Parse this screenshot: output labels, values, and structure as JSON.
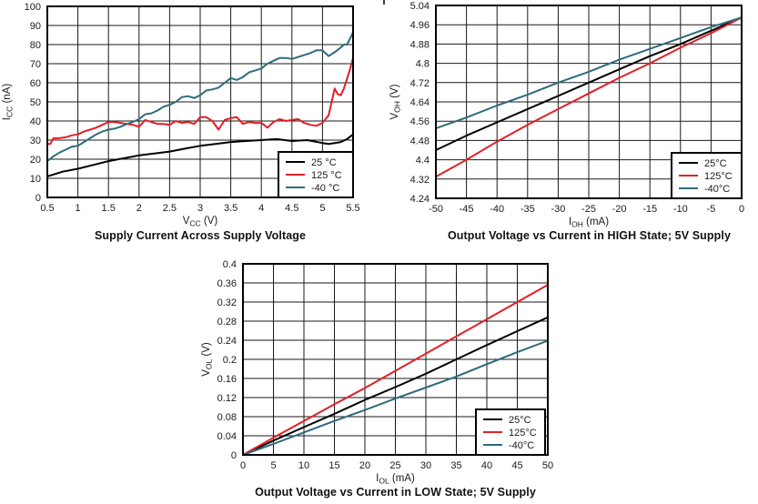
{
  "page": {
    "background": "#ffffff"
  },
  "colors": {
    "grid": "#1a1a1a",
    "frame": "#000000",
    "text": "#1a1a1a",
    "legend_border": "#000000",
    "legend_bg": "#ffffff"
  },
  "chart_data": [
    {
      "type": "line",
      "title": "Supply Current Across Supply Voltage",
      "xlabel": "VCC (V)",
      "ylabel": "ICC (nA)",
      "xlabel_parts": [
        {
          "t": "V"
        },
        {
          "t": "CC",
          "sub": true
        },
        {
          "t": " (V)"
        }
      ],
      "ylabel_parts": [
        {
          "t": "I"
        },
        {
          "t": "CC",
          "sub": true
        },
        {
          "t": " (nA)"
        }
      ],
      "xlim": [
        0.5,
        5.5
      ],
      "ylim": [
        0,
        100
      ],
      "xtick_labels": [
        "0.5",
        "1",
        "1.5",
        "2",
        "2.5",
        "3",
        "3.5",
        "4",
        "4.5",
        "5",
        "5.5"
      ],
      "ytick_labels": [
        "0",
        "10",
        "20",
        "30",
        "40",
        "50",
        "60",
        "70",
        "80",
        "90",
        "100"
      ],
      "grid": true,
      "legend_position": "bottom-right",
      "series": [
        {
          "name": "25 °C",
          "color": "#000000",
          "x": [
            0.5,
            0.75,
            1,
            1.25,
            1.5,
            1.75,
            2,
            2.25,
            2.5,
            2.75,
            3,
            3.25,
            3.5,
            3.75,
            4,
            4.25,
            4.5,
            4.75,
            5,
            5.1,
            5.2,
            5.3,
            5.4,
            5.5
          ],
          "y": [
            11,
            13.5,
            15,
            17,
            19,
            20.5,
            22,
            23,
            24,
            25.5,
            27,
            28,
            29,
            29.5,
            30,
            30.5,
            29.5,
            30,
            28.5,
            28,
            28.5,
            29,
            30.5,
            33
          ]
        },
        {
          "name": "125 °C",
          "color": "#e21f26",
          "x": [
            0.5,
            0.55,
            0.6,
            0.7,
            0.8,
            0.9,
            1,
            1.1,
            1.2,
            1.3,
            1.4,
            1.5,
            1.6,
            1.7,
            1.8,
            1.9,
            2,
            2.1,
            2.2,
            2.3,
            2.4,
            2.5,
            2.6,
            2.7,
            2.8,
            2.9,
            3,
            3.1,
            3.2,
            3.3,
            3.4,
            3.5,
            3.6,
            3.7,
            3.8,
            3.9,
            4,
            4.1,
            4.2,
            4.3,
            4.4,
            4.5,
            4.6,
            4.7,
            4.8,
            4.9,
            5,
            5.05,
            5.1,
            5.15,
            5.2,
            5.25,
            5.3,
            5.35,
            5.4,
            5.45,
            5.5
          ],
          "y": [
            28,
            28,
            31,
            31,
            31.5,
            32.5,
            33,
            34.5,
            35.5,
            36.5,
            38,
            39.5,
            39.5,
            39,
            38.5,
            38,
            37,
            40.5,
            39.5,
            38.5,
            38.5,
            38,
            40,
            39,
            39.5,
            38.5,
            42,
            42,
            40,
            35.5,
            40.5,
            41.5,
            42,
            38.5,
            39.5,
            39,
            39,
            36.5,
            39.5,
            41,
            40,
            40.5,
            41,
            39,
            38,
            37.5,
            39,
            41,
            43,
            50,
            57,
            54,
            53.5,
            57,
            62,
            67,
            73
          ]
        },
        {
          "name": "-40 °C",
          "color": "#2e6b7b",
          "x": [
            0.5,
            0.6,
            0.7,
            0.8,
            0.9,
            1,
            1.1,
            1.2,
            1.3,
            1.4,
            1.5,
            1.6,
            1.7,
            1.8,
            1.9,
            2,
            2.1,
            2.2,
            2.3,
            2.4,
            2.5,
            2.6,
            2.7,
            2.8,
            2.9,
            3,
            3.1,
            3.2,
            3.3,
            3.4,
            3.5,
            3.6,
            3.7,
            3.8,
            3.9,
            4,
            4.1,
            4.2,
            4.3,
            4.4,
            4.5,
            4.6,
            4.7,
            4.8,
            4.9,
            5,
            5.1,
            5.2,
            5.3,
            5.35,
            5.4,
            5.45,
            5.5
          ],
          "y": [
            19,
            21.5,
            23.5,
            25,
            26.5,
            27,
            29,
            31,
            33,
            34.5,
            35.5,
            36,
            37,
            38.5,
            39.5,
            41,
            43.5,
            44,
            45.5,
            47.5,
            48.5,
            50,
            52.5,
            53,
            52,
            53.5,
            56,
            56.5,
            57.5,
            60,
            62.5,
            61.5,
            63,
            65.5,
            66.5,
            67.5,
            70,
            71.5,
            73,
            73,
            72.5,
            73.5,
            74.5,
            75.5,
            77,
            77,
            74,
            76,
            78.5,
            80,
            80,
            83,
            86.5
          ]
        }
      ]
    },
    {
      "type": "line",
      "title": "Output Voltage vs Current in HIGH State; 5V Supply",
      "xlabel": "IOH (mA)",
      "ylabel": "VOH (V)",
      "xlabel_parts": [
        {
          "t": "I"
        },
        {
          "t": "OH",
          "sub": true
        },
        {
          "t": " (mA)"
        }
      ],
      "ylabel_parts": [
        {
          "t": "V"
        },
        {
          "t": "OH",
          "sub": true
        },
        {
          "t": " (V)"
        }
      ],
      "xlim": [
        -50,
        0
      ],
      "ylim": [
        4.24,
        5.04
      ],
      "xtick_labels": [
        "-50",
        "-45",
        "-40",
        "-35",
        "-30",
        "-25",
        "-20",
        "-15",
        "-10",
        "-5",
        "0"
      ],
      "ytick_labels": [
        "4.24",
        "4.32",
        "4.4",
        "4.48",
        "4.56",
        "4.64",
        "4.72",
        "4.8",
        "4.88",
        "4.96",
        "5.04"
      ],
      "grid": true,
      "legend_position": "bottom-right",
      "series": [
        {
          "name": "25°C",
          "color": "#000000",
          "x": [
            -50,
            -45,
            -40,
            -35,
            -30,
            -25,
            -20,
            -15,
            -10,
            -5,
            0
          ],
          "y": [
            4.44,
            4.5,
            4.555,
            4.61,
            4.665,
            4.72,
            4.775,
            4.83,
            4.88,
            4.935,
            4.99
          ]
        },
        {
          "name": "125°C",
          "color": "#e21f26",
          "x": [
            -50,
            -45,
            -40,
            -35,
            -30,
            -25,
            -20,
            -15,
            -10,
            -5,
            0
          ],
          "y": [
            4.33,
            4.4,
            4.475,
            4.545,
            4.61,
            4.675,
            4.74,
            4.8,
            4.865,
            4.925,
            4.99
          ]
        },
        {
          "name": "-40°C",
          "color": "#2e6b7b",
          "x": [
            -50,
            -45,
            -40,
            -35,
            -30,
            -25,
            -20,
            -15,
            -10,
            -5,
            0
          ],
          "y": [
            4.53,
            4.575,
            4.625,
            4.67,
            4.72,
            4.765,
            4.815,
            4.86,
            4.905,
            4.95,
            4.99
          ]
        }
      ]
    },
    {
      "type": "line",
      "title": "Output Voltage vs Current in LOW State; 5V Supply",
      "xlabel": "IOL (mA)",
      "ylabel": "VOL (V)",
      "xlabel_parts": [
        {
          "t": "I"
        },
        {
          "t": "OL",
          "sub": true
        },
        {
          "t": " (mA)"
        }
      ],
      "ylabel_parts": [
        {
          "t": "V"
        },
        {
          "t": "OL",
          "sub": true
        },
        {
          "t": " (V)"
        }
      ],
      "xlim": [
        0,
        50
      ],
      "ylim": [
        0,
        0.4
      ],
      "xtick_labels": [
        "0",
        "5",
        "10",
        "15",
        "20",
        "25",
        "30",
        "35",
        "40",
        "45",
        "50"
      ],
      "ytick_labels": [
        "0",
        "0.04",
        "0.08",
        "0.12",
        "0.16",
        "0.2",
        "0.24",
        "0.28",
        "0.32",
        "0.36",
        "0.4"
      ],
      "grid": true,
      "legend_position": "bottom-right",
      "series": [
        {
          "name": "25°C",
          "color": "#000000",
          "x": [
            0,
            5,
            10,
            15,
            20,
            25,
            30,
            35,
            40,
            45,
            50
          ],
          "y": [
            0,
            0.03,
            0.058,
            0.086,
            0.115,
            0.142,
            0.17,
            0.2,
            0.23,
            0.259,
            0.288
          ]
        },
        {
          "name": "125°C",
          "color": "#e21f26",
          "x": [
            0,
            5,
            10,
            15,
            20,
            25,
            30,
            35,
            40,
            45,
            50
          ],
          "y": [
            0,
            0.036,
            0.071,
            0.106,
            0.14,
            0.176,
            0.212,
            0.248,
            0.284,
            0.32,
            0.356
          ]
        },
        {
          "name": "-40°C",
          "color": "#2e6b7b",
          "x": [
            0,
            5,
            10,
            15,
            20,
            25,
            30,
            35,
            40,
            45,
            50
          ],
          "y": [
            0,
            0.023,
            0.047,
            0.071,
            0.094,
            0.118,
            0.141,
            0.164,
            0.19,
            0.215,
            0.239
          ]
        }
      ]
    }
  ]
}
